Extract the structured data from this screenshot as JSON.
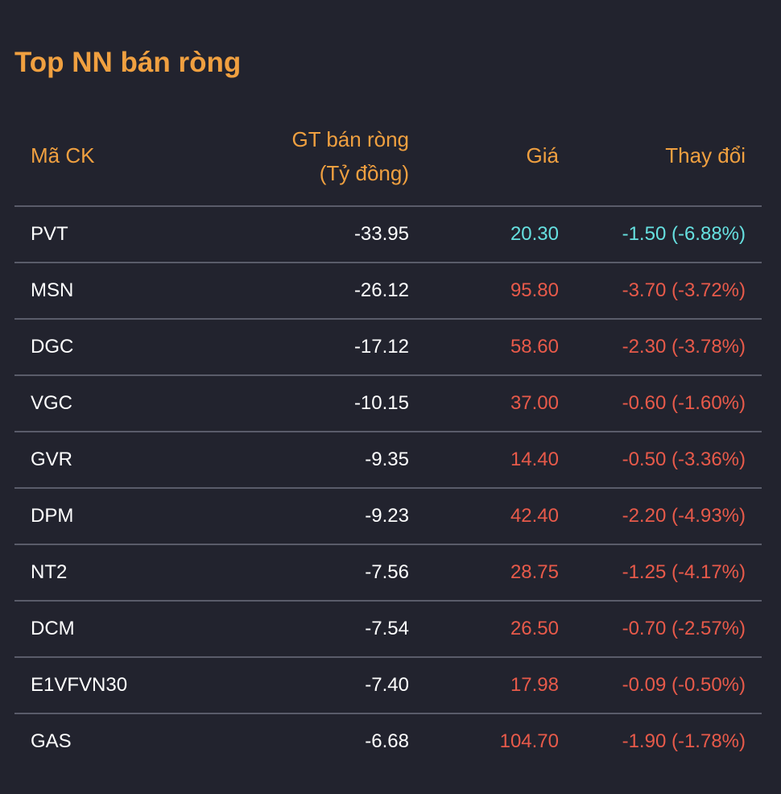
{
  "title": "Top NN bán ròng",
  "colors": {
    "accent": "#f0a040",
    "floor": "#66e0e0",
    "down": "#e85a4a",
    "text": "#ffffff",
    "divider": "#5a5c6a",
    "background": "#22232e"
  },
  "table": {
    "headers": {
      "code": "Mã CK",
      "value_line1": "GT bán ròng",
      "value_line2": "(Tỷ đồng)",
      "price": "Giá",
      "change": "Thay đổi"
    },
    "rows": [
      {
        "code": "PVT",
        "value": "-33.95",
        "price": "20.30",
        "change": "-1.50 (-6.88%)",
        "color": "#66e0e0"
      },
      {
        "code": "MSN",
        "value": "-26.12",
        "price": "95.80",
        "change": "-3.70 (-3.72%)",
        "color": "#e85a4a"
      },
      {
        "code": "DGC",
        "value": "-17.12",
        "price": "58.60",
        "change": "-2.30 (-3.78%)",
        "color": "#e85a4a"
      },
      {
        "code": "VGC",
        "value": "-10.15",
        "price": "37.00",
        "change": "-0.60 (-1.60%)",
        "color": "#e85a4a"
      },
      {
        "code": "GVR",
        "value": "-9.35",
        "price": "14.40",
        "change": "-0.50 (-3.36%)",
        "color": "#e85a4a"
      },
      {
        "code": "DPM",
        "value": "-9.23",
        "price": "42.40",
        "change": "-2.20 (-4.93%)",
        "color": "#e85a4a"
      },
      {
        "code": "NT2",
        "value": "-7.56",
        "price": "28.75",
        "change": "-1.25 (-4.17%)",
        "color": "#e85a4a"
      },
      {
        "code": "DCM",
        "value": "-7.54",
        "price": "26.50",
        "change": "-0.70 (-2.57%)",
        "color": "#e85a4a"
      },
      {
        "code": "E1VFVN30",
        "value": "-7.40",
        "price": "17.98",
        "change": "-0.09 (-0.50%)",
        "color": "#e85a4a"
      },
      {
        "code": "GAS",
        "value": "-6.68",
        "price": "104.70",
        "change": "-1.90 (-1.78%)",
        "color": "#e85a4a"
      }
    ]
  }
}
